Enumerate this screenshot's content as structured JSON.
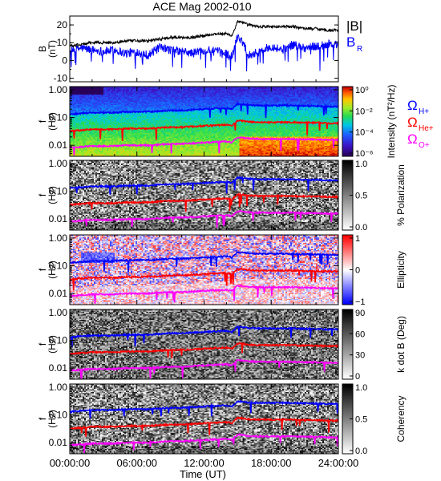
{
  "chart_data": {
    "type": "multi-panel",
    "title": "ACE Mag 2002-010",
    "time_axis": {
      "label": "Time (UT)",
      "range_hours": [
        0,
        24
      ],
      "tick_labels": [
        "00:00:00",
        "06:00:00",
        "12:00:00",
        "18:00:00",
        "24:00:00"
      ]
    },
    "top_panel": {
      "type": "line",
      "ylabel": "B (nT)",
      "ylim": [
        -12,
        25
      ],
      "yticks": [
        "-10",
        "0",
        "10",
        "20"
      ],
      "legend": [
        "|B|",
        "B",
        "R"
      ],
      "colors": {
        "B_total": "#000000",
        "B_R": "#0000ff"
      },
      "series": [
        {
          "name": "|B|",
          "x": [
            0,
            1,
            2,
            3,
            4,
            5,
            6,
            7,
            8,
            9,
            10,
            11,
            12,
            13,
            14,
            14.5,
            15,
            15.5,
            16,
            17,
            18,
            19,
            20,
            21,
            22,
            23,
            24
          ],
          "values": [
            8,
            9,
            10,
            10,
            10,
            11,
            11,
            11,
            12,
            13,
            13,
            13,
            14,
            15,
            15,
            14,
            22,
            21,
            20,
            19,
            19,
            19,
            19,
            18,
            18,
            17,
            17
          ]
        },
        {
          "name": "BR",
          "x": [
            0,
            1,
            2,
            3,
            4,
            5,
            6,
            7,
            8,
            9,
            10,
            11,
            12,
            13,
            14,
            14.5,
            15,
            15.5,
            16,
            17,
            18,
            19,
            20,
            21,
            22,
            23,
            24
          ],
          "values": [
            5,
            7,
            6,
            5,
            6,
            4,
            5,
            3,
            7,
            6,
            5,
            4,
            6,
            5,
            4,
            2,
            14,
            10,
            3,
            5,
            8,
            6,
            9,
            7,
            8,
            9,
            9
          ]
        }
      ]
    },
    "frequency_panels": {
      "ylabel": "f (Hz)",
      "yticks": [
        "0.01",
        "0.10",
        "1.00"
      ],
      "yscale": "log",
      "ylim": [
        0.004,
        1.3
      ],
      "gyrofrequency_lines": {
        "labels": [
          "Ω",
          "H+",
          "Ω",
          "He+",
          "Ω",
          "O+"
        ],
        "colors": {
          "H": "#0000ff",
          "He": "#ff0000",
          "O": "#ff00ff"
        },
        "x": [
          0,
          1,
          2,
          3,
          4,
          5,
          6,
          7,
          8,
          9,
          10,
          11,
          12,
          13,
          14,
          14.5,
          15,
          15.5,
          16,
          17,
          18,
          19,
          20,
          21,
          22,
          23,
          24
        ],
        "H_plus": [
          0.13,
          0.14,
          0.15,
          0.15,
          0.15,
          0.16,
          0.16,
          0.16,
          0.17,
          0.18,
          0.18,
          0.19,
          0.2,
          0.21,
          0.22,
          0.2,
          0.31,
          0.3,
          0.28,
          0.27,
          0.27,
          0.27,
          0.27,
          0.26,
          0.26,
          0.25,
          0.25
        ]
      },
      "panels": [
        {
          "colorbar_label": "Intensity (nT²/Hz)",
          "colorbar_ticks": [
            "10⁰",
            "10⁻²",
            "10⁻⁴",
            "10⁻⁶"
          ],
          "colormap": "rainbow"
        },
        {
          "colorbar_label": "% Polarization",
          "colorbar_ticks": [
            "1.0",
            "0.5",
            "0.0"
          ],
          "colormap": "gray"
        },
        {
          "colorbar_label": "Ellipticity",
          "colorbar_ticks": [
            "1",
            "0",
            "−1"
          ],
          "colormap": "blue-white-red"
        },
        {
          "colorbar_label": "k dot B (Deg)",
          "colorbar_ticks": [
            "90",
            "60",
            "30",
            "0"
          ],
          "colormap": "gray"
        },
        {
          "colorbar_label": "Coherency",
          "colorbar_ticks": [
            "1.0",
            "0.5",
            "0.0"
          ],
          "colormap": "gray"
        }
      ]
    }
  }
}
